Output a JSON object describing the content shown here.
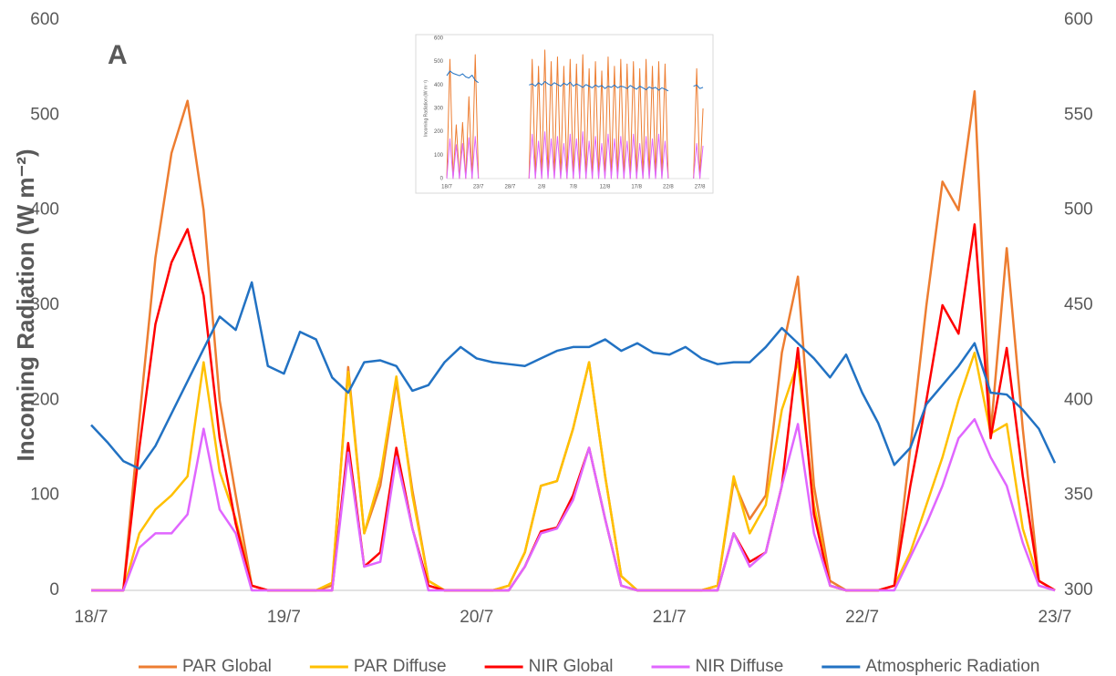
{
  "chart_data": [
    {
      "type": "line",
      "annotation": "A",
      "y_label": "Incoming Radiation (W m⁻²)",
      "legend": "bottom",
      "x": [
        0,
        2,
        4,
        6,
        8,
        10,
        12,
        14,
        16,
        18,
        20,
        22,
        24,
        26,
        28,
        30,
        32,
        34,
        36,
        38,
        40,
        42,
        44,
        46,
        48,
        50,
        52,
        54,
        56,
        58,
        60,
        62,
        64,
        66,
        68,
        70,
        72,
        74,
        76,
        78,
        80,
        82,
        84,
        86,
        88,
        90,
        92,
        94,
        96,
        98,
        100,
        102,
        104,
        106,
        108,
        110,
        112,
        114,
        116,
        118,
        120
      ],
      "xlim": [
        0,
        120
      ],
      "xticks": [
        {
          "value": 0,
          "label": "18/7"
        },
        {
          "value": 24,
          "label": "19/7"
        },
        {
          "value": 48,
          "label": "20/7"
        },
        {
          "value": 72,
          "label": "21/7"
        },
        {
          "value": 96,
          "label": "22/7"
        },
        {
          "value": 120,
          "label": "23/7"
        }
      ],
      "ylim": [
        0,
        600
      ],
      "yticks": [
        0,
        100,
        200,
        300,
        400,
        500,
        600
      ],
      "y2lim": [
        300,
        600
      ],
      "y2ticks": [
        300,
        350,
        400,
        450,
        500,
        550,
        600
      ],
      "series": [
        {
          "name": "PAR Global",
          "color": "#ed7d31",
          "values": [
            0,
            0,
            0,
            180,
            350,
            460,
            515,
            400,
            200,
            100,
            5,
            0,
            0,
            0,
            0,
            5,
            235,
            60,
            110,
            220,
            105,
            10,
            0,
            0,
            0,
            0,
            5,
            40,
            110,
            115,
            170,
            240,
            120,
            15,
            0,
            0,
            0,
            0,
            0,
            5,
            115,
            75,
            100,
            250,
            330,
            110,
            10,
            0,
            0,
            0,
            5,
            150,
            300,
            430,
            400,
            525,
            165,
            360,
            170,
            10,
            0
          ]
        },
        {
          "name": "PAR Diffuse",
          "color": "#ffc000",
          "values": [
            0,
            0,
            0,
            60,
            85,
            100,
            120,
            240,
            125,
            75,
            5,
            0,
            0,
            0,
            0,
            8,
            230,
            60,
            120,
            225,
            100,
            10,
            0,
            0,
            0,
            0,
            5,
            40,
            110,
            115,
            170,
            240,
            120,
            15,
            0,
            0,
            0,
            0,
            0,
            5,
            120,
            60,
            90,
            190,
            240,
            90,
            5,
            0,
            0,
            0,
            5,
            40,
            90,
            140,
            200,
            250,
            165,
            175,
            65,
            10,
            0
          ]
        },
        {
          "name": "NIR Global",
          "color": "#ff0000",
          "values": [
            0,
            0,
            0,
            150,
            280,
            345,
            380,
            310,
            160,
            70,
            5,
            0,
            0,
            0,
            0,
            0,
            155,
            25,
            40,
            150,
            65,
            5,
            0,
            0,
            0,
            0,
            0,
            25,
            62,
            66,
            100,
            150,
            75,
            5,
            0,
            0,
            0,
            0,
            0,
            0,
            60,
            30,
            40,
            110,
            255,
            80,
            5,
            0,
            0,
            0,
            5,
            110,
            200,
            300,
            270,
            385,
            160,
            255,
            120,
            10,
            0
          ]
        },
        {
          "name": "NIR Diffuse",
          "color": "#e066ff",
          "values": [
            0,
            0,
            0,
            45,
            60,
            60,
            80,
            170,
            85,
            60,
            0,
            0,
            0,
            0,
            0,
            0,
            145,
            25,
            30,
            140,
            65,
            0,
            0,
            0,
            0,
            0,
            0,
            25,
            60,
            65,
            95,
            150,
            75,
            5,
            0,
            0,
            0,
            0,
            0,
            0,
            60,
            25,
            40,
            110,
            175,
            60,
            5,
            0,
            0,
            0,
            0,
            35,
            70,
            110,
            160,
            180,
            140,
            110,
            50,
            5,
            0
          ]
        },
        {
          "name": "Atmospheric Radiation",
          "color": "#2272c3",
          "axis": "y2",
          "values": [
            387,
            378,
            368,
            364,
            376,
            393,
            410,
            427,
            444,
            437,
            462,
            418,
            414,
            436,
            432,
            412,
            404,
            420,
            421,
            418,
            405,
            408,
            420,
            428,
            422,
            420,
            419,
            418,
            422,
            426,
            428,
            428,
            432,
            426,
            430,
            425,
            424,
            428,
            422,
            419,
            420,
            420,
            428,
            438,
            430,
            422,
            412,
            424,
            404,
            388,
            366,
            375,
            398,
            408,
            418,
            430,
            404,
            403,
            395,
            385,
            367
          ]
        }
      ]
    },
    {
      "type": "line",
      "y_label": "Incoming Radiation (W m⁻²)",
      "x": [
        0,
        0.5,
        1,
        1.5,
        2,
        2.5,
        3,
        3.5,
        4,
        4.5,
        5,
        5.5,
        6,
        6.5,
        7,
        7.5,
        8,
        8.5,
        9,
        9.5,
        10,
        10.5,
        11,
        11.5,
        12,
        12.5,
        13,
        13.5,
        14,
        14.5,
        15,
        15.5,
        16,
        16.5,
        17,
        17.5,
        18,
        18.5,
        19,
        19.5,
        20,
        20.5,
        21,
        21.5,
        22,
        22.5,
        23,
        23.5,
        24,
        24.5,
        25,
        25.5,
        26,
        26.5,
        27,
        27.5,
        28,
        28.5,
        29,
        29.5,
        30,
        30.5,
        31,
        31.5,
        32,
        32.5,
        33,
        33.5,
        34,
        34.5,
        35,
        35.5,
        36,
        36.5,
        37,
        37.5,
        38,
        38.5,
        39,
        39.5,
        40,
        40.5
      ],
      "xlim": [
        0,
        41.5
      ],
      "xticks": [
        {
          "value": 0,
          "label": "18/7"
        },
        {
          "value": 5,
          "label": "23/7"
        },
        {
          "value": 10,
          "label": "28/7"
        },
        {
          "value": 15,
          "label": "2/8"
        },
        {
          "value": 20,
          "label": "7/8"
        },
        {
          "value": 25,
          "label": "12/8"
        },
        {
          "value": 30,
          "label": "17/8"
        },
        {
          "value": 35,
          "label": "22/8"
        },
        {
          "value": 40,
          "label": "27/8"
        }
      ],
      "ylim": [
        0,
        600
      ],
      "yticks": [
        0,
        100,
        200,
        300,
        400,
        500,
        600
      ],
      "series": [
        {
          "color": "#ed7d31",
          "values": [
            0,
            510,
            0,
            230,
            0,
            240,
            0,
            350,
            0,
            530,
            0,
            null,
            null,
            null,
            null,
            null,
            null,
            null,
            null,
            null,
            null,
            null,
            null,
            null,
            null,
            null,
            0,
            510,
            0,
            480,
            0,
            550,
            0,
            500,
            0,
            520,
            0,
            480,
            0,
            510,
            0,
            490,
            0,
            530,
            0,
            470,
            0,
            500,
            0,
            460,
            0,
            520,
            0,
            480,
            0,
            510,
            0,
            490,
            0,
            500,
            0,
            470,
            0,
            510,
            0,
            480,
            0,
            500,
            0,
            490,
            0,
            null,
            null,
            null,
            null,
            null,
            null,
            null,
            0,
            470,
            0,
            300
          ]
        },
        {
          "color": "#e066ff",
          "values": [
            0,
            170,
            0,
            145,
            0,
            150,
            0,
            175,
            0,
            180,
            0,
            null,
            null,
            null,
            null,
            null,
            null,
            null,
            null,
            null,
            null,
            null,
            null,
            null,
            null,
            null,
            0,
            190,
            0,
            160,
            0,
            200,
            0,
            170,
            0,
            180,
            0,
            150,
            0,
            190,
            0,
            170,
            0,
            200,
            0,
            160,
            0,
            180,
            0,
            150,
            0,
            190,
            0,
            170,
            0,
            180,
            0,
            160,
            0,
            190,
            0,
            150,
            0,
            180,
            0,
            170,
            0,
            190,
            0,
            160,
            0,
            null,
            null,
            null,
            null,
            null,
            null,
            null,
            0,
            150,
            0,
            140
          ]
        },
        {
          "color": "#2272c3",
          "values": [
            440,
            460,
            450,
            445,
            440,
            448,
            435,
            430,
            442,
            420,
            410,
            null,
            null,
            null,
            null,
            null,
            null,
            null,
            null,
            null,
            null,
            null,
            null,
            null,
            null,
            null,
            400,
            405,
            395,
            410,
            400,
            415,
            405,
            398,
            410,
            402,
            395,
            408,
            400,
            412,
            395,
            405,
            398,
            390,
            402,
            395,
            388,
            400,
            392,
            398,
            385,
            395,
            390,
            400,
            388,
            395,
            392,
            385,
            398,
            390,
            382,
            395,
            388,
            380,
            392,
            385,
            390,
            378,
            388,
            382,
            375,
            null,
            null,
            null,
            null,
            null,
            null,
            null,
            395,
            400,
            385,
            390
          ]
        }
      ]
    }
  ]
}
